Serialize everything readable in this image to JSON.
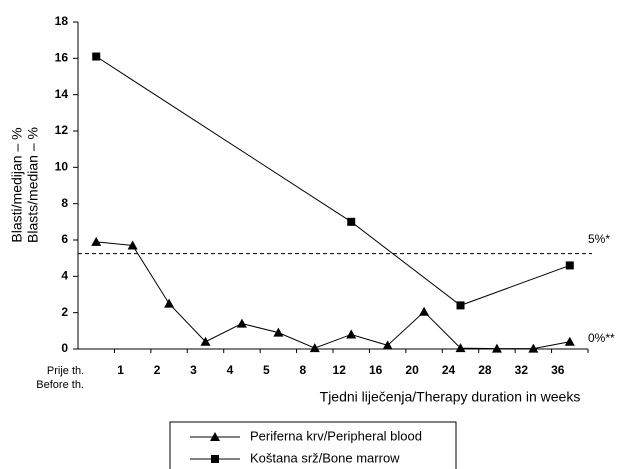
{
  "chart_data": {
    "type": "line",
    "ylabel": [
      "Blasti/medijan – %",
      "Blasts/median – %"
    ],
    "xlabel": "Tjedni liječenja/Therapy duration in weeks",
    "categories": [
      "Prije th.",
      "1",
      "2",
      "3",
      "4",
      "5",
      "8",
      "12",
      "16",
      "20",
      "24",
      "28",
      "32",
      "36"
    ],
    "x_first_label_en": "Before th.",
    "series": [
      {
        "name": "Periferna krv/Peripheral blood",
        "marker": "triangle",
        "color": "#000000",
        "x": [
          "Prije th.",
          "1",
          "2",
          "3",
          "4",
          "5",
          "8",
          "12",
          "16",
          "20",
          "24",
          "28",
          "32",
          "36"
        ],
        "values": [
          5.9,
          5.7,
          2.5,
          0.4,
          1.4,
          0.9,
          0.05,
          0.8,
          0.2,
          2.05,
          0.05,
          0.02,
          0.02,
          0.4
        ]
      },
      {
        "name": "Koštana srž/Bone marrow",
        "marker": "square",
        "color": "#000000",
        "x": [
          "Prije th.",
          "12",
          "24",
          "36"
        ],
        "values": [
          16.1,
          7.0,
          2.4,
          4.6
        ]
      }
    ],
    "ylim": [
      0,
      18
    ],
    "yticks": [
      0,
      2,
      4,
      6,
      8,
      10,
      12,
      14,
      16,
      18
    ],
    "reference_lines": [
      {
        "value": 5.25,
        "label": "5%*"
      }
    ],
    "annotations": [
      {
        "value": 0,
        "label": "0%**"
      }
    ],
    "grid": false,
    "legend": "bottom"
  }
}
